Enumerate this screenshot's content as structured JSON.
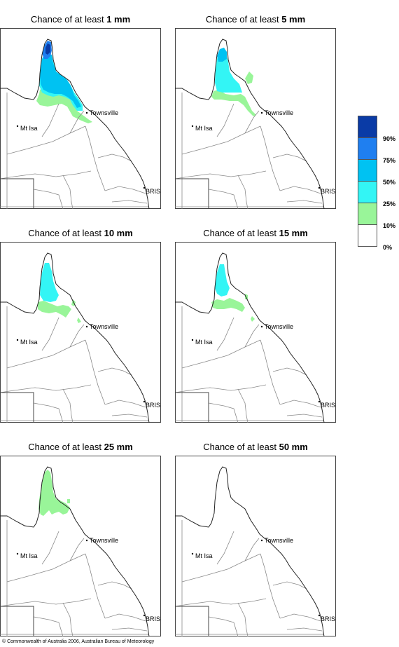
{
  "panels": [
    {
      "prefix": "Chance of at least ",
      "amount": "1 mm"
    },
    {
      "prefix": "Chance of at least ",
      "amount": "5 mm"
    },
    {
      "prefix": "Chance of at least ",
      "amount": "10 mm"
    },
    {
      "prefix": "Chance of at least ",
      "amount": "15 mm"
    },
    {
      "prefix": "Chance of at least ",
      "amount": "25 mm"
    },
    {
      "prefix": "Chance of at least ",
      "amount": "50 mm"
    }
  ],
  "map_labels": {
    "townsville": "Townsville",
    "mt_isa": "Mt Isa",
    "brisbane": "BRIS"
  },
  "legend": {
    "ticks": [
      "90%",
      "75%",
      "50%",
      "25%",
      "10%",
      "0%"
    ],
    "colors": [
      "#0a3ba6",
      "#1f7ff0",
      "#00c2f2",
      "#33f5f5",
      "#99f599",
      "#ffffff"
    ]
  },
  "copyright": "© Commonwealth of Australia 2006, Australian Bureau of Meteorology"
}
